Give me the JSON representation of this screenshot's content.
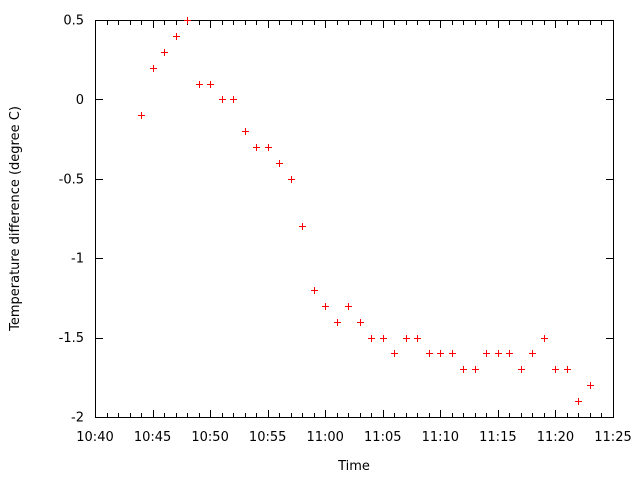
{
  "chart_data": {
    "type": "scatter",
    "title": "",
    "xlabel": "Time",
    "ylabel": "Temperature difference (degree C)",
    "xlim": [
      "10:40",
      "11:25"
    ],
    "ylim": [
      -2,
      0.5
    ],
    "x_major_ticks": [
      "10:40",
      "10:45",
      "10:50",
      "10:55",
      "11:00",
      "11:05",
      "11:10",
      "11:15",
      "11:20",
      "11:25"
    ],
    "x_minor_tick_interval_minutes": 1,
    "y_ticks": [
      0.5,
      0,
      -0.5,
      -1,
      -1.5,
      -2
    ],
    "y_tick_labels": [
      "0.5",
      "0",
      "-0.5",
      "-1",
      "-1.5",
      "-2"
    ],
    "grid": false,
    "legend": "none",
    "marker": "plus",
    "marker_color": "#ff0000",
    "axis_color": "#000000",
    "background_color": "#ffffff",
    "series": [
      {
        "name": "temperature-difference",
        "points": [
          {
            "time": "10:44",
            "value": -0.1
          },
          {
            "time": "10:45",
            "value": 0.2
          },
          {
            "time": "10:46",
            "value": 0.3
          },
          {
            "time": "10:47",
            "value": 0.4
          },
          {
            "time": "10:48",
            "value": 0.5
          },
          {
            "time": "10:49",
            "value": 0.1
          },
          {
            "time": "10:50",
            "value": 0.1
          },
          {
            "time": "10:51",
            "value": 0.0
          },
          {
            "time": "10:52",
            "value": 0.0
          },
          {
            "time": "10:53",
            "value": -0.2
          },
          {
            "time": "10:54",
            "value": -0.3
          },
          {
            "time": "10:55",
            "value": -0.3
          },
          {
            "time": "10:56",
            "value": -0.4
          },
          {
            "time": "10:57",
            "value": -0.5
          },
          {
            "time": "10:58",
            "value": -0.8
          },
          {
            "time": "10:59",
            "value": -1.2
          },
          {
            "time": "11:00",
            "value": -1.3
          },
          {
            "time": "11:01",
            "value": -1.4
          },
          {
            "time": "11:02",
            "value": -1.3
          },
          {
            "time": "11:03",
            "value": -1.4
          },
          {
            "time": "11:04",
            "value": -1.5
          },
          {
            "time": "11:05",
            "value": -1.5
          },
          {
            "time": "11:06",
            "value": -1.6
          },
          {
            "time": "11:07",
            "value": -1.5
          },
          {
            "time": "11:08",
            "value": -1.5
          },
          {
            "time": "11:09",
            "value": -1.6
          },
          {
            "time": "11:10",
            "value": -1.6
          },
          {
            "time": "11:11",
            "value": -1.6
          },
          {
            "time": "11:12",
            "value": -1.7
          },
          {
            "time": "11:13",
            "value": -1.7
          },
          {
            "time": "11:14",
            "value": -1.6
          },
          {
            "time": "11:15",
            "value": -1.6
          },
          {
            "time": "11:16",
            "value": -1.6
          },
          {
            "time": "11:17",
            "value": -1.7
          },
          {
            "time": "11:18",
            "value": -1.6
          },
          {
            "time": "11:19",
            "value": -1.5
          },
          {
            "time": "11:20",
            "value": -1.7
          },
          {
            "time": "11:21",
            "value": -1.7
          },
          {
            "time": "11:22",
            "value": -1.9
          },
          {
            "time": "11:23",
            "value": -1.8
          }
        ]
      }
    ]
  }
}
